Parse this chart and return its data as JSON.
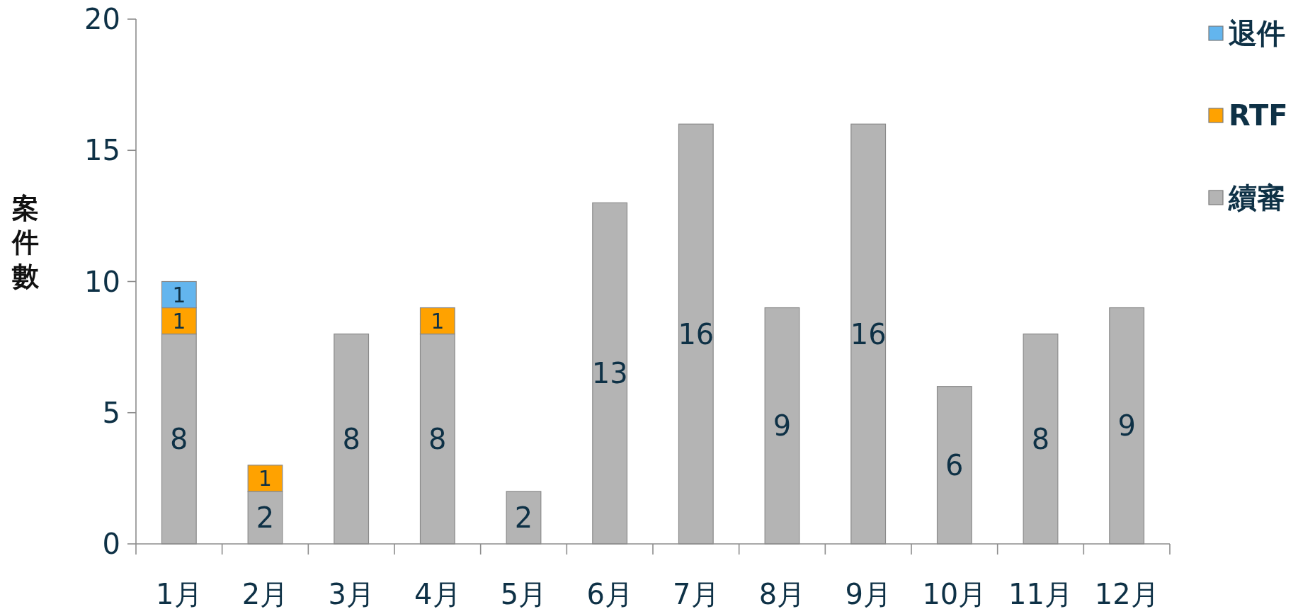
{
  "chart_data": {
    "type": "bar",
    "stacked": true,
    "ylabel": "案件數",
    "categories": [
      "1月",
      "2月",
      "3月",
      "4月",
      "5月",
      "6月",
      "7月",
      "8月",
      "9月",
      "10月",
      "11月",
      "12月"
    ],
    "series": [
      {
        "name": "續審",
        "color": "#b4b4b4",
        "values": [
          8,
          2,
          8,
          8,
          2,
          13,
          16,
          9,
          16,
          6,
          8,
          9
        ]
      },
      {
        "name": "RTF",
        "color": "#ffa200",
        "values": [
          1,
          1,
          null,
          1,
          null,
          null,
          null,
          null,
          null,
          null,
          null,
          null
        ]
      },
      {
        "name": "退件",
        "color": "#63b5ee",
        "values": [
          1,
          null,
          null,
          null,
          null,
          null,
          null,
          null,
          null,
          null,
          null,
          null
        ]
      }
    ],
    "ylim": [
      0,
      20
    ],
    "yticks": [
      0,
      5,
      10,
      15,
      20
    ],
    "data_labels": true,
    "legend": "top right"
  }
}
